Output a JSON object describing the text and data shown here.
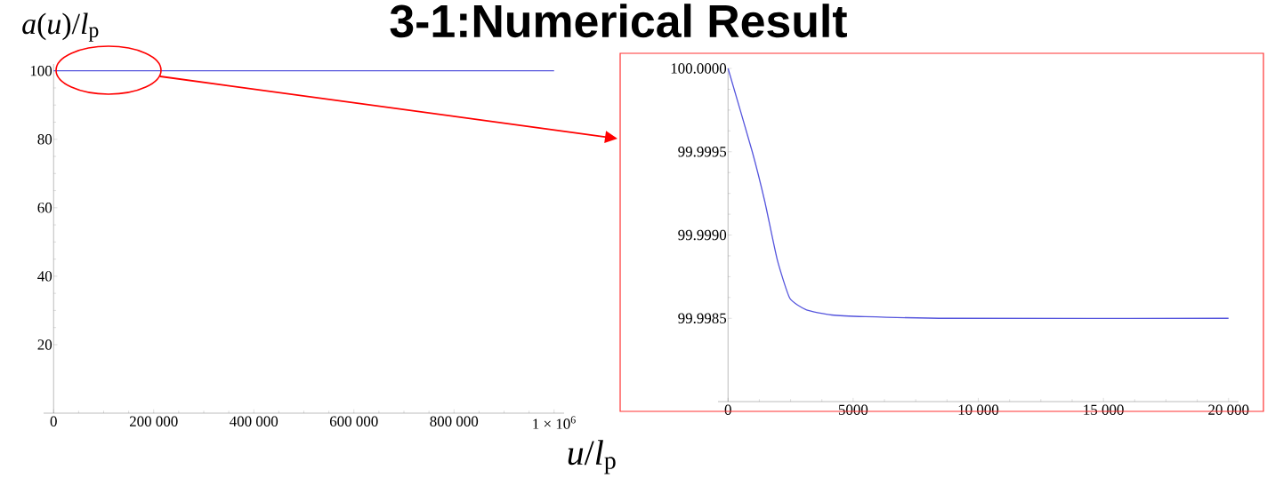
{
  "chart_data": [
    {
      "type": "line",
      "title": "3-1:Numerical Result",
      "ylabel": "*a*(*u*)/*l*$_{p}$",
      "xlabel": "*u*/*l*$_{p}$",
      "x": [
        0,
        1000000
      ],
      "series": [
        {
          "color": "#5555dd",
          "values": [
            100,
            100
          ]
        }
      ],
      "xlim": [
        -20000,
        1020000
      ],
      "ylim": [
        0,
        102
      ],
      "xticks": [
        0,
        {
          "value": 200000,
          "label": "200 000"
        },
        {
          "value": 400000,
          "label": "400 000"
        },
        {
          "value": 600000,
          "label": "600 000"
        },
        {
          "value": 800000,
          "label": "800 000"
        },
        {
          "value": 1000000,
          "label": "1 × 10$^{6}$"
        }
      ],
      "yticks": [
        20,
        40,
        60,
        80,
        100
      ],
      "grid": false,
      "legend": false,
      "marker": "none",
      "line_style": "solid"
    },
    {
      "type": "line",
      "x": [
        0,
        968,
        1470,
        1970,
        2470,
        3140,
        4140,
        5480,
        8810,
        20000
      ],
      "series": [
        {
          "color": "#5555dd",
          "values": [
            100.0,
            99.9995,
            99.9992,
            99.99885,
            99.99862,
            99.99855,
            99.99852,
            99.99851,
            99.9985,
            99.9985
          ]
        }
      ],
      "xlim": [
        -400,
        20400
      ],
      "ylim": [
        99.998,
        100.0
      ],
      "xticks": [
        0,
        5000,
        {
          "value": 10000,
          "label": "10 000"
        },
        {
          "value": 15000,
          "label": "15 000"
        },
        {
          "value": 20000,
          "label": "20 000"
        }
      ],
      "yticks": [
        {
          "value": 99.9985,
          "label": "99.9985"
        },
        {
          "value": 99.999,
          "label": "99.9990"
        },
        {
          "value": 99.9995,
          "label": "99.9995"
        },
        {
          "value": 100.0,
          "label": "100.0000"
        }
      ],
      "grid": false,
      "legend": false,
      "marker": "none",
      "line_style": "solid"
    }
  ]
}
